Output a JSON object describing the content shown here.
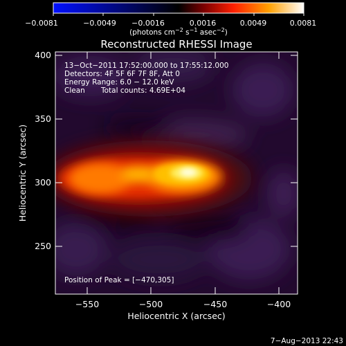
{
  "colorbar": {
    "ticks": [
      "−0.0081",
      "−0.0049",
      "−0.0016",
      "0.0016",
      "0.0049",
      "0.0081"
    ],
    "unit_prefix": "(photons cm",
    "unit_exp1": "−2",
    "unit_mid": " s",
    "unit_exp2": "−1",
    "unit_mid2": " asec",
    "unit_exp3": "−2",
    "unit_suffix": ")"
  },
  "title": "Reconstructed RHESSI Image",
  "info": {
    "line1": "13−Oct−2011 17:52:00.000 to 17:55:12.000",
    "line2": "Detectors: 4F 5F 6F 7F 8F, Att 0",
    "line3": "Energy Range: 6.0 − 12.0 keV",
    "line4_left": "Clean",
    "line4_right": "Total counts: 4.69E+04"
  },
  "peak_label": "Position of Peak = [−470,305]",
  "axes": {
    "xlabel": "Heliocentric X (arcsec)",
    "ylabel": "Heliocentric Y (arcsec)",
    "xticks": [
      "−550",
      "−500",
      "−450",
      "−400"
    ],
    "yticks": [
      "400",
      "350",
      "300",
      "250"
    ]
  },
  "footer": {
    "date": "7−Aug−2013 22:43"
  },
  "colors": {
    "cbar_neg": "#0010ff",
    "cbar_mid": "#000000",
    "cbar_pos_1": "#ff0000",
    "cbar_pos_2": "#ffffff"
  }
}
